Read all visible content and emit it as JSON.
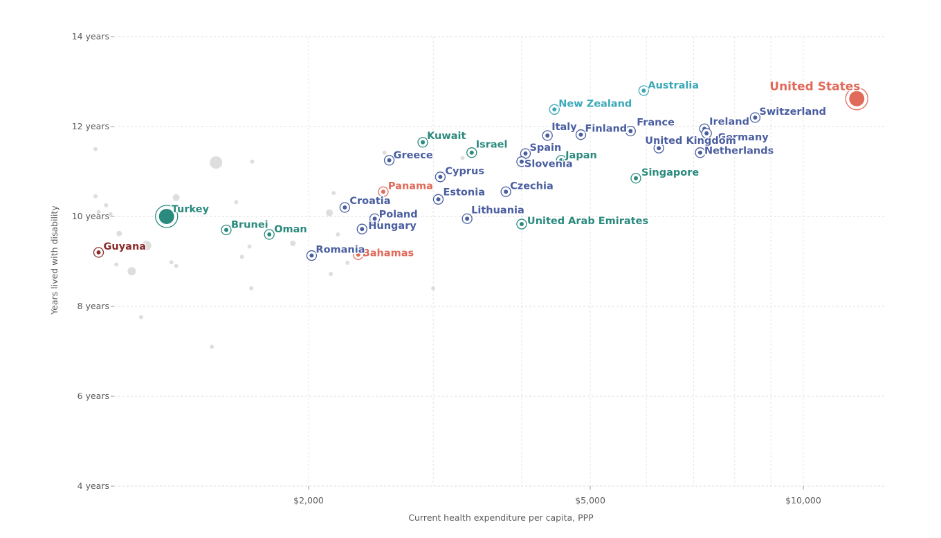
{
  "chart_data": {
    "type": "scatter",
    "xlabel": "Current health expenditure per capita, PPP",
    "ylabel": "Years lived with disability",
    "x_scale": "log",
    "xlim": [
      1000,
      15000
    ],
    "ylim": [
      4,
      14
    ],
    "x_ticks": [
      {
        "value": 2000,
        "label": "$2,000"
      },
      {
        "value": 5000,
        "label": "$5,000"
      },
      {
        "value": 10000,
        "label": "$10,000"
      }
    ],
    "y_ticks": [
      {
        "value": 4,
        "label": "4 years"
      },
      {
        "value": 6,
        "label": "6 years"
      },
      {
        "value": 8,
        "label": "8 years"
      },
      {
        "value": 10,
        "label": "10 years"
      },
      {
        "value": 12,
        "label": "12 years"
      },
      {
        "value": 14,
        "label": "14 years"
      }
    ],
    "colors": {
      "Americas": "#e06b5a",
      "Europe": "#4a5ea0",
      "Asia": "#2b8a7e",
      "Oceania": "#3ba8b8",
      "Guyana": "#8b2b2b",
      "Background": "#dedede"
    },
    "points": [
      {
        "country": "United States",
        "x": 11900,
        "y": 12.62,
        "region": "Americas",
        "big": true
      },
      {
        "country": "Australia",
        "x": 5950,
        "y": 12.8,
        "region": "Oceania"
      },
      {
        "country": "New Zealand",
        "x": 4450,
        "y": 12.38,
        "region": "Oceania"
      },
      {
        "country": "Switzerland",
        "x": 8550,
        "y": 12.2,
        "region": "Europe"
      },
      {
        "country": "Ireland",
        "x": 7250,
        "y": 11.95,
        "region": "Europe"
      },
      {
        "country": "Germany",
        "x": 7300,
        "y": 11.85,
        "region": "Europe"
      },
      {
        "country": "United Kingdom",
        "x": 6250,
        "y": 11.52,
        "region": "Europe"
      },
      {
        "country": "Netherlands",
        "x": 7150,
        "y": 11.42,
        "region": "Europe"
      },
      {
        "country": "France",
        "x": 5700,
        "y": 11.9,
        "region": "Europe"
      },
      {
        "country": "Finland",
        "x": 4850,
        "y": 11.82,
        "region": "Europe"
      },
      {
        "country": "Italy",
        "x": 4350,
        "y": 11.8,
        "region": "Europe"
      },
      {
        "country": "Spain",
        "x": 4050,
        "y": 11.4,
        "region": "Europe"
      },
      {
        "country": "Slovenia",
        "x": 4000,
        "y": 11.22,
        "region": "Europe"
      },
      {
        "country": "Japan",
        "x": 4550,
        "y": 11.25,
        "region": "Asia"
      },
      {
        "country": "Singapore",
        "x": 5800,
        "y": 10.85,
        "region": "Asia"
      },
      {
        "country": "Czechia",
        "x": 3800,
        "y": 10.55,
        "region": "Europe"
      },
      {
        "country": "United Arab Emirates",
        "x": 4000,
        "y": 9.83,
        "region": "Asia"
      },
      {
        "country": "Lithuania",
        "x": 3350,
        "y": 9.95,
        "region": "Europe"
      },
      {
        "country": "Estonia",
        "x": 3050,
        "y": 10.38,
        "region": "Europe"
      },
      {
        "country": "Cyprus",
        "x": 3070,
        "y": 10.88,
        "region": "Europe"
      },
      {
        "country": "Israel",
        "x": 3400,
        "y": 11.42,
        "region": "Asia"
      },
      {
        "country": "Kuwait",
        "x": 2900,
        "y": 11.65,
        "region": "Asia"
      },
      {
        "country": "Greece",
        "x": 2600,
        "y": 11.25,
        "region": "Europe"
      },
      {
        "country": "Panama",
        "x": 2550,
        "y": 10.55,
        "region": "Americas"
      },
      {
        "country": "Croatia",
        "x": 2250,
        "y": 10.2,
        "region": "Europe"
      },
      {
        "country": "Poland",
        "x": 2480,
        "y": 9.95,
        "region": "Europe"
      },
      {
        "country": "Hungary",
        "x": 2380,
        "y": 9.72,
        "region": "Europe"
      },
      {
        "country": "Bahamas",
        "x": 2350,
        "y": 9.15,
        "region": "Americas"
      },
      {
        "country": "Romania",
        "x": 2020,
        "y": 9.13,
        "region": "Europe"
      },
      {
        "country": "Oman",
        "x": 1760,
        "y": 9.6,
        "region": "Asia"
      },
      {
        "country": "Brunei",
        "x": 1530,
        "y": 9.7,
        "region": "Asia"
      },
      {
        "country": "Turkey",
        "x": 1260,
        "y": 10.0,
        "region": "Asia",
        "big": true
      },
      {
        "country": "Guyana",
        "x": 1010,
        "y": 9.2,
        "region": "Guyana"
      }
    ]
  }
}
